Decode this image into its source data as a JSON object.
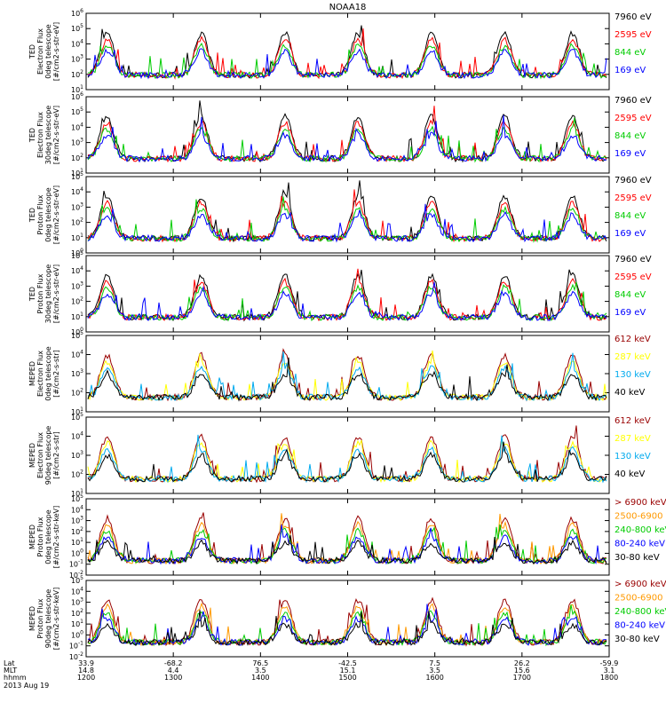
{
  "title": "NOAA18",
  "date": "2013 Aug 19",
  "panels": [
    {
      "ylabel": [
        "TED",
        "Electron Flux",
        "0deg telescope",
        "[#/cm2-s-str-eV]"
      ],
      "ymin": 1,
      "ymax": 6,
      "legend": [
        {
          "text": "7960 eV",
          "color": "#000000"
        },
        {
          "text": "2595 eV",
          "color": "#ff0000"
        },
        {
          "text": "844 eV",
          "color": "#00cc00"
        },
        {
          "text": "169 eV",
          "color": "#0000ff"
        }
      ]
    },
    {
      "ylabel": [
        "TED",
        "Electron Flux",
        "30deg telescope",
        "[#/cm2-s-str-eV]"
      ],
      "ymin": 1,
      "ymax": 6,
      "legend": [
        {
          "text": "7960 eV",
          "color": "#000000"
        },
        {
          "text": "2595 eV",
          "color": "#ff0000"
        },
        {
          "text": "844 eV",
          "color": "#00cc00"
        },
        {
          "text": "169 eV",
          "color": "#0000ff"
        }
      ]
    },
    {
      "ylabel": [
        "TED",
        "Proton Flux",
        "0deg telescope",
        "[#/cm2-s-str-eV]"
      ],
      "ymin": 0,
      "ymax": 5,
      "legend": [
        {
          "text": "7960 eV",
          "color": "#000000"
        },
        {
          "text": "2595 eV",
          "color": "#ff0000"
        },
        {
          "text": "844 eV",
          "color": "#00cc00"
        },
        {
          "text": "169 eV",
          "color": "#0000ff"
        }
      ]
    },
    {
      "ylabel": [
        "TED",
        "Proton Flux",
        "30deg telescope",
        "[#/cm2-s-str-eV]"
      ],
      "ymin": 0,
      "ymax": 5,
      "legend": [
        {
          "text": "7960 eV",
          "color": "#000000"
        },
        {
          "text": "2595 eV",
          "color": "#ff0000"
        },
        {
          "text": "844 eV",
          "color": "#00cc00"
        },
        {
          "text": "169 eV",
          "color": "#0000ff"
        }
      ]
    },
    {
      "ylabel": [
        "MEPED",
        "Electron Flux",
        "0deg telescope",
        "[#/cm2-s-str]"
      ],
      "ymin": 1,
      "ymax": 5,
      "legend": [
        {
          "text": "612 keV",
          "color": "#990000"
        },
        {
          "text": "287 keV",
          "color": "#ffff00"
        },
        {
          "text": "130 keV",
          "color": "#00aaee"
        },
        {
          "text": "40 keV",
          "color": "#000000"
        }
      ]
    },
    {
      "ylabel": [
        "MEPED",
        "Electron Flux",
        "90deg telescope",
        "[#/cm2-s-str]"
      ],
      "ymin": 1,
      "ymax": 5,
      "legend": [
        {
          "text": "612 keV",
          "color": "#990000"
        },
        {
          "text": "287 keV",
          "color": "#ffff00"
        },
        {
          "text": "130 keV",
          "color": "#00aaee"
        },
        {
          "text": "40 keV",
          "color": "#000000"
        }
      ]
    },
    {
      "ylabel": [
        "MEPED",
        "Proton Flux",
        "0deg telescope",
        "[#/cm2-s-str-keV]"
      ],
      "ymin": -2,
      "ymax": 5,
      "legend": [
        {
          "text": "> 6900 keV",
          "color": "#990000"
        },
        {
          "text": "2500-6900",
          "color": "#ff9900"
        },
        {
          "text": "240-800 keV",
          "color": "#00cc00"
        },
        {
          "text": "80-240 keV",
          "color": "#0000ff"
        },
        {
          "text": "30-80 keV",
          "color": "#000000"
        }
      ]
    },
    {
      "ylabel": [
        "MEPED",
        "Proton Flux",
        "90deg telescope",
        "[#/cm2-s-str-keV]"
      ],
      "ymin": -2,
      "ymax": 5,
      "legend": [
        {
          "text": "> 6900 keV",
          "color": "#990000"
        },
        {
          "text": "2500-6900",
          "color": "#ff9900"
        },
        {
          "text": "240-800 keV",
          "color": "#00cc00"
        },
        {
          "text": "80-240 keV",
          "color": "#0000ff"
        },
        {
          "text": "30-80 keV",
          "color": "#000000"
        }
      ]
    }
  ],
  "xaxis": {
    "row_labels": [
      "Lat",
      "MLT",
      "hhmm"
    ],
    "ticks": [
      {
        "lat": "33.9",
        "mlt": "14.8",
        "time": "1200"
      },
      {
        "lat": "-68.2",
        "mlt": "4.4",
        "time": "1300"
      },
      {
        "lat": "76.5",
        "mlt": "3.5",
        "time": "1400"
      },
      {
        "lat": "-42.5",
        "mlt": "15.1",
        "time": "1500"
      },
      {
        "lat": "7.5",
        "mlt": "3.5",
        "time": "1600"
      },
      {
        "lat": "26.2",
        "mlt": "15.6",
        "time": "1700"
      },
      {
        "lat": "-59.9",
        "mlt": "3.1",
        "time": "1800"
      }
    ]
  },
  "chart_data": {
    "type": "line",
    "title": "NOAA18",
    "x_unit": "hhmm",
    "x_range": [
      "1200",
      "1800"
    ],
    "y_scale": "log",
    "grid": false,
    "legend_placement": "right of each panel"
  }
}
